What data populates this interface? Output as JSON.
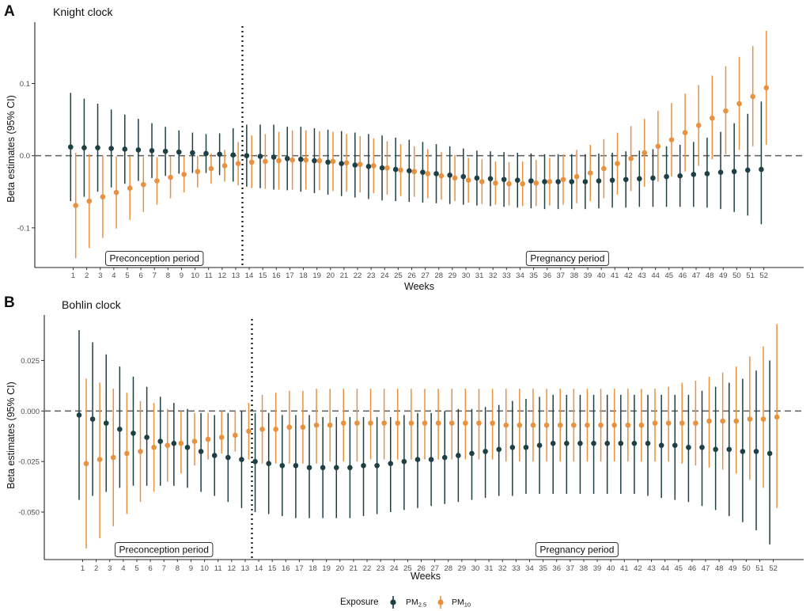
{
  "legend": {
    "title": "Exposure",
    "items": [
      {
        "main": "PM",
        "sub": "2.5",
        "color": "#1e3f44"
      },
      {
        "main": "PM",
        "sub": "10",
        "color": "#e8913f"
      }
    ]
  },
  "chart_data": [
    {
      "panel": "A",
      "type": "scatter",
      "title": "Knight clock",
      "xlabel": "Weeks",
      "ylabel": "Beta estimates (95% CI)",
      "ylim": [
        -0.155,
        0.185
      ],
      "yticks": [
        -0.1,
        0.0,
        0.1
      ],
      "ytick_labels": [
        "-0.1",
        "0.0",
        "0.1"
      ],
      "x": [
        1,
        2,
        3,
        4,
        5,
        6,
        7,
        8,
        9,
        10,
        11,
        12,
        13,
        14,
        15,
        16,
        17,
        18,
        19,
        20,
        21,
        22,
        23,
        24,
        25,
        26,
        27,
        28,
        29,
        30,
        31,
        32,
        33,
        34,
        35,
        36,
        37,
        38,
        39,
        40,
        41,
        42,
        43,
        44,
        45,
        46,
        47,
        48,
        49,
        50,
        51,
        52
      ],
      "reference_line_y": 0,
      "vertical_divider_x": 13.5,
      "period_labels": [
        {
          "text": "Preconception period",
          "x": 7
        },
        {
          "text": "Pregnancy period",
          "x": 37.5
        }
      ],
      "series": [
        {
          "name": "PM2.5",
          "color": "#1e3f44",
          "estimate": [
            0.012,
            0.011,
            0.011,
            0.01,
            0.009,
            0.008,
            0.007,
            0.006,
            0.005,
            0.004,
            0.003,
            0.002,
            0.001,
            0.0,
            -0.001,
            -0.002,
            -0.004,
            -0.005,
            -0.007,
            -0.009,
            -0.011,
            -0.013,
            -0.015,
            -0.017,
            -0.019,
            -0.021,
            -0.023,
            -0.025,
            -0.027,
            -0.029,
            -0.031,
            -0.032,
            -0.033,
            -0.034,
            -0.035,
            -0.036,
            -0.036,
            -0.036,
            -0.036,
            -0.035,
            -0.034,
            -0.033,
            -0.032,
            -0.031,
            -0.029,
            -0.028,
            -0.026,
            -0.025,
            -0.023,
            -0.022,
            -0.02,
            -0.019
          ],
          "lower": [
            -0.063,
            -0.057,
            -0.05,
            -0.044,
            -0.039,
            -0.035,
            -0.031,
            -0.028,
            -0.025,
            -0.024,
            -0.024,
            -0.027,
            -0.036,
            -0.043,
            -0.045,
            -0.047,
            -0.048,
            -0.05,
            -0.052,
            -0.054,
            -0.056,
            -0.058,
            -0.06,
            -0.062,
            -0.063,
            -0.064,
            -0.065,
            -0.066,
            -0.067,
            -0.068,
            -0.069,
            -0.07,
            -0.071,
            -0.072,
            -0.073,
            -0.074,
            -0.074,
            -0.074,
            -0.074,
            -0.073,
            -0.072,
            -0.072,
            -0.071,
            -0.071,
            -0.071,
            -0.071,
            -0.071,
            -0.072,
            -0.074,
            -0.078,
            -0.083,
            -0.095
          ],
          "upper": [
            0.087,
            0.079,
            0.072,
            0.064,
            0.057,
            0.051,
            0.045,
            0.04,
            0.035,
            0.032,
            0.03,
            0.031,
            0.038,
            0.043,
            0.043,
            0.043,
            0.04,
            0.04,
            0.038,
            0.036,
            0.034,
            0.032,
            0.03,
            0.028,
            0.025,
            0.022,
            0.019,
            0.016,
            0.013,
            0.01,
            0.007,
            0.006,
            0.005,
            0.004,
            0.003,
            0.002,
            0.002,
            0.002,
            0.002,
            0.003,
            0.004,
            0.006,
            0.007,
            0.009,
            0.013,
            0.015,
            0.019,
            0.025,
            0.033,
            0.045,
            0.058,
            0.075
          ]
        },
        {
          "name": "PM10",
          "color": "#e8913f",
          "estimate": [
            -0.069,
            -0.063,
            -0.057,
            -0.051,
            -0.045,
            -0.04,
            -0.035,
            -0.03,
            -0.026,
            -0.022,
            -0.018,
            -0.014,
            -0.011,
            -0.009,
            -0.008,
            -0.007,
            -0.006,
            -0.006,
            -0.007,
            -0.008,
            -0.01,
            -0.012,
            -0.014,
            -0.017,
            -0.02,
            -0.022,
            -0.025,
            -0.028,
            -0.031,
            -0.034,
            -0.036,
            -0.038,
            -0.039,
            -0.039,
            -0.038,
            -0.036,
            -0.033,
            -0.029,
            -0.024,
            -0.018,
            -0.011,
            -0.004,
            0.004,
            0.013,
            0.022,
            0.032,
            0.042,
            0.052,
            0.062,
            0.072,
            0.082,
            0.094
          ],
          "lower": [
            -0.142,
            -0.128,
            -0.114,
            -0.101,
            -0.089,
            -0.078,
            -0.068,
            -0.059,
            -0.051,
            -0.044,
            -0.039,
            -0.036,
            -0.041,
            -0.045,
            -0.046,
            -0.047,
            -0.047,
            -0.047,
            -0.048,
            -0.049,
            -0.05,
            -0.051,
            -0.052,
            -0.054,
            -0.056,
            -0.057,
            -0.059,
            -0.061,
            -0.063,
            -0.065,
            -0.067,
            -0.068,
            -0.069,
            -0.07,
            -0.07,
            -0.069,
            -0.068,
            -0.066,
            -0.063,
            -0.059,
            -0.054,
            -0.049,
            -0.043,
            -0.036,
            -0.029,
            -0.022,
            -0.014,
            -0.005,
            0.002,
            0.008,
            0.013,
            0.015
          ],
          "upper": [
            0.004,
            0.002,
            0.0,
            -0.001,
            -0.001,
            -0.002,
            -0.002,
            -0.001,
            -0.001,
            0.0,
            0.003,
            0.008,
            0.019,
            0.028,
            0.03,
            0.033,
            0.035,
            0.035,
            0.034,
            0.033,
            0.03,
            0.027,
            0.024,
            0.02,
            0.016,
            0.013,
            0.009,
            0.005,
            0.001,
            -0.003,
            -0.005,
            -0.008,
            -0.009,
            -0.008,
            -0.006,
            -0.003,
            0.002,
            0.008,
            0.015,
            0.023,
            0.032,
            0.041,
            0.051,
            0.062,
            0.073,
            0.086,
            0.098,
            0.111,
            0.124,
            0.137,
            0.152,
            0.173
          ]
        }
      ]
    },
    {
      "panel": "B",
      "type": "scatter",
      "title": "Bohlin clock",
      "xlabel": "Weeks",
      "ylabel": "Beta estimates (95% CI)",
      "ylim": [
        -0.0735,
        0.0475
      ],
      "yticks": [
        -0.05,
        -0.025,
        0.0,
        0.025
      ],
      "ytick_labels": [
        "-0.050",
        "-0.025",
        "0.000",
        "0.025"
      ],
      "x": [
        1,
        2,
        3,
        4,
        5,
        6,
        7,
        8,
        9,
        10,
        11,
        12,
        13,
        14,
        15,
        16,
        17,
        18,
        19,
        20,
        21,
        22,
        23,
        24,
        25,
        26,
        27,
        28,
        29,
        30,
        31,
        32,
        33,
        34,
        35,
        36,
        37,
        38,
        39,
        40,
        41,
        42,
        43,
        44,
        45,
        46,
        47,
        48,
        49,
        50,
        51,
        52
      ],
      "reference_line_y": 0,
      "vertical_divider_x": 13.5,
      "period_labels": [
        {
          "text": "Preconception period",
          "x": 7
        },
        {
          "text": "Pregnancy period",
          "x": 37.5
        }
      ],
      "series": [
        {
          "name": "PM2.5",
          "color": "#1e3f44",
          "estimate": [
            -0.002,
            -0.004,
            -0.006,
            -0.009,
            -0.011,
            -0.013,
            -0.015,
            -0.016,
            -0.018,
            -0.02,
            -0.022,
            -0.023,
            -0.024,
            -0.025,
            -0.026,
            -0.027,
            -0.027,
            -0.028,
            -0.028,
            -0.028,
            -0.028,
            -0.027,
            -0.027,
            -0.026,
            -0.025,
            -0.024,
            -0.024,
            -0.023,
            -0.022,
            -0.021,
            -0.02,
            -0.019,
            -0.018,
            -0.018,
            -0.017,
            -0.016,
            -0.016,
            -0.016,
            -0.016,
            -0.016,
            -0.016,
            -0.016,
            -0.016,
            -0.017,
            -0.017,
            -0.018,
            -0.018,
            -0.019,
            -0.019,
            -0.02,
            -0.02,
            -0.021
          ],
          "lower": [
            -0.044,
            -0.042,
            -0.04,
            -0.038,
            -0.037,
            -0.037,
            -0.037,
            -0.037,
            -0.038,
            -0.04,
            -0.042,
            -0.045,
            -0.048,
            -0.05,
            -0.051,
            -0.052,
            -0.053,
            -0.053,
            -0.053,
            -0.053,
            -0.053,
            -0.052,
            -0.051,
            -0.05,
            -0.049,
            -0.048,
            -0.047,
            -0.046,
            -0.045,
            -0.044,
            -0.043,
            -0.042,
            -0.042,
            -0.041,
            -0.041,
            -0.041,
            -0.041,
            -0.041,
            -0.041,
            -0.041,
            -0.041,
            -0.041,
            -0.042,
            -0.043,
            -0.044,
            -0.045,
            -0.047,
            -0.049,
            -0.052,
            -0.055,
            -0.059,
            -0.066
          ],
          "upper": [
            0.04,
            0.034,
            0.028,
            0.022,
            0.017,
            0.012,
            0.007,
            0.004,
            0.001,
            -0.001,
            -0.002,
            -0.001,
            0.0,
            -0.001,
            -0.001,
            -0.002,
            -0.002,
            -0.002,
            -0.003,
            -0.003,
            -0.003,
            -0.003,
            -0.003,
            -0.003,
            -0.002,
            -0.001,
            -0.001,
            0.0,
            0.001,
            0.001,
            0.002,
            0.003,
            0.005,
            0.006,
            0.007,
            0.008,
            0.008,
            0.008,
            0.008,
            0.008,
            0.008,
            0.008,
            0.008,
            0.008,
            0.008,
            0.008,
            0.01,
            0.012,
            0.014,
            0.016,
            0.02,
            0.025
          ]
        },
        {
          "name": "PM10",
          "color": "#e8913f",
          "estimate": [
            -0.026,
            -0.024,
            -0.023,
            -0.021,
            -0.02,
            -0.018,
            -0.017,
            -0.016,
            -0.015,
            -0.014,
            -0.013,
            -0.012,
            -0.01,
            -0.009,
            -0.009,
            -0.008,
            -0.008,
            -0.007,
            -0.007,
            -0.006,
            -0.006,
            -0.006,
            -0.006,
            -0.006,
            -0.006,
            -0.006,
            -0.006,
            -0.006,
            -0.006,
            -0.006,
            -0.006,
            -0.007,
            -0.007,
            -0.007,
            -0.007,
            -0.007,
            -0.007,
            -0.007,
            -0.007,
            -0.007,
            -0.007,
            -0.007,
            -0.006,
            -0.006,
            -0.006,
            -0.006,
            -0.005,
            -0.005,
            -0.005,
            -0.004,
            -0.004,
            -0.003
          ],
          "lower": [
            -0.068,
            -0.063,
            -0.057,
            -0.051,
            -0.045,
            -0.04,
            -0.035,
            -0.031,
            -0.027,
            -0.024,
            -0.021,
            -0.02,
            -0.024,
            -0.026,
            -0.026,
            -0.026,
            -0.026,
            -0.026,
            -0.025,
            -0.025,
            -0.025,
            -0.024,
            -0.024,
            -0.024,
            -0.024,
            -0.024,
            -0.024,
            -0.024,
            -0.024,
            -0.024,
            -0.024,
            -0.025,
            -0.025,
            -0.025,
            -0.025,
            -0.025,
            -0.025,
            -0.025,
            -0.025,
            -0.025,
            -0.025,
            -0.025,
            -0.025,
            -0.025,
            -0.026,
            -0.027,
            -0.028,
            -0.029,
            -0.031,
            -0.034,
            -0.038,
            -0.048
          ],
          "upper": [
            0.016,
            0.014,
            0.011,
            0.009,
            0.005,
            0.004,
            0.001,
            0.0,
            -0.001,
            -0.001,
            0.0,
            0.0,
            0.004,
            0.008,
            0.009,
            0.01,
            0.01,
            0.011,
            0.011,
            0.011,
            0.011,
            0.011,
            0.011,
            0.011,
            0.011,
            0.011,
            0.011,
            0.011,
            0.011,
            0.011,
            0.011,
            0.011,
            0.011,
            0.011,
            0.011,
            0.011,
            0.011,
            0.011,
            0.011,
            0.011,
            0.011,
            0.011,
            0.011,
            0.012,
            0.014,
            0.015,
            0.017,
            0.019,
            0.022,
            0.027,
            0.032,
            0.043
          ]
        }
      ]
    }
  ]
}
